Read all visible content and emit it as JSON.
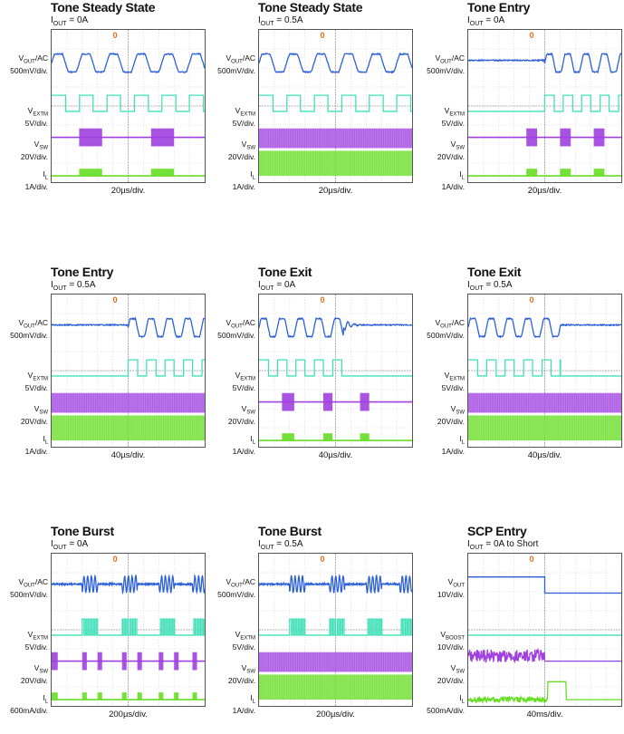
{
  "panels": [
    {
      "title": "Tone Steady State",
      "cond_sym": "OUT",
      "cond_val": " = 0A",
      "xdiv": "20µs/div.",
      "channels": [
        {
          "sym": "V",
          "sub": "OUT",
          "suffix": "/AC",
          "scale": "500mV/div.",
          "kind": "vout_tone",
          "start": 0.0,
          "end": 1.0,
          "period": 0.18
        },
        {
          "sym": "V",
          "sub": "EXTM",
          "suffix": "",
          "scale": "5V/div.",
          "kind": "square",
          "start": 0.0,
          "end": 1.0,
          "period": 0.18
        },
        {
          "sym": "V",
          "sub": "SW",
          "suffix": "",
          "scale": "20V/div.",
          "kind": "sw_burst",
          "bursts": [
            [
              0.18,
              0.33
            ],
            [
              0.65,
              0.8
            ]
          ]
        },
        {
          "sym": "I",
          "sub": "L",
          "suffix": "",
          "scale": "1A/div.",
          "kind": "il_burst",
          "bursts": [
            [
              0.18,
              0.33
            ],
            [
              0.65,
              0.8
            ]
          ]
        }
      ]
    },
    {
      "title": "Tone Steady State",
      "cond_sym": "OUT",
      "cond_val": " = 0.5A",
      "xdiv": "20µs/div.",
      "channels": [
        {
          "sym": "V",
          "sub": "OUT",
          "suffix": "/AC",
          "scale": "500mV/div.",
          "kind": "vout_tone",
          "start": 0.0,
          "end": 1.0,
          "period": 0.18
        },
        {
          "sym": "V",
          "sub": "EXTM",
          "suffix": "",
          "scale": "5V/div.",
          "kind": "square",
          "start": 0.0,
          "end": 1.0,
          "period": 0.18
        },
        {
          "sym": "V",
          "sub": "SW",
          "suffix": "",
          "scale": "20V/div.",
          "kind": "sw_full"
        },
        {
          "sym": "I",
          "sub": "L",
          "suffix": "",
          "scale": "1A/div.",
          "kind": "il_full"
        }
      ]
    },
    {
      "title": "Tone Entry",
      "cond_sym": "OUT",
      "cond_val": " = 0A",
      "xdiv": "20µs/div.",
      "channels": [
        {
          "sym": "V",
          "sub": "OUT",
          "suffix": "/AC",
          "scale": "500mV/div.",
          "kind": "vout_tone",
          "start": 0.5,
          "end": 1.0,
          "period": 0.12
        },
        {
          "sym": "V",
          "sub": "EXTM",
          "suffix": "",
          "scale": "5V/div.",
          "kind": "square",
          "start": 0.5,
          "end": 1.0,
          "period": 0.12
        },
        {
          "sym": "V",
          "sub": "SW",
          "suffix": "",
          "scale": "20V/div.",
          "kind": "sw_burst",
          "bursts": [
            [
              0.38,
              0.45
            ],
            [
              0.6,
              0.67
            ],
            [
              0.82,
              0.89
            ]
          ]
        },
        {
          "sym": "I",
          "sub": "L",
          "suffix": "",
          "scale": "1A/div.",
          "kind": "il_burst",
          "bursts": [
            [
              0.38,
              0.45
            ],
            [
              0.6,
              0.67
            ],
            [
              0.82,
              0.89
            ]
          ]
        }
      ]
    },
    {
      "title": "Tone Entry",
      "cond_sym": "OUT",
      "cond_val": " = 0.5A",
      "xdiv": "40µs/div.",
      "channels": [
        {
          "sym": "V",
          "sub": "OUT",
          "suffix": "/AC",
          "scale": "500mV/div.",
          "kind": "vout_tone",
          "start": 0.5,
          "end": 1.0,
          "period": 0.12
        },
        {
          "sym": "V",
          "sub": "EXTM",
          "suffix": "",
          "scale": "5V/div.",
          "kind": "square",
          "start": 0.5,
          "end": 1.0,
          "period": 0.12
        },
        {
          "sym": "V",
          "sub": "SW",
          "suffix": "",
          "scale": "20V/div.",
          "kind": "sw_full"
        },
        {
          "sym": "I",
          "sub": "L",
          "suffix": "",
          "scale": "1A/div.",
          "kind": "il_full"
        }
      ]
    },
    {
      "title": "Tone Exit",
      "cond_sym": "OUT",
      "cond_val": " = 0A",
      "xdiv": "40µs/div.",
      "channels": [
        {
          "sym": "V",
          "sub": "OUT",
          "suffix": "/AC",
          "scale": "500mV/div.",
          "kind": "vout_tone",
          "start": 0.0,
          "end": 0.55,
          "period": 0.12,
          "ring": true
        },
        {
          "sym": "V",
          "sub": "EXTM",
          "suffix": "",
          "scale": "5V/div.",
          "kind": "square",
          "start": 0.0,
          "end": 0.55,
          "period": 0.12
        },
        {
          "sym": "V",
          "sub": "SW",
          "suffix": "",
          "scale": "20V/div.",
          "kind": "sw_burst",
          "bursts": [
            [
              0.15,
              0.23
            ],
            [
              0.42,
              0.48
            ],
            [
              0.66,
              0.72
            ]
          ]
        },
        {
          "sym": "I",
          "sub": "L",
          "suffix": "",
          "scale": "1A/div.",
          "kind": "il_burst",
          "bursts": [
            [
              0.15,
              0.23
            ],
            [
              0.42,
              0.48
            ],
            [
              0.66,
              0.72
            ]
          ]
        }
      ]
    },
    {
      "title": "Tone Exit",
      "cond_sym": "OUT",
      "cond_val": " = 0.5A",
      "xdiv": "40µs/div.",
      "channels": [
        {
          "sym": "V",
          "sub": "OUT",
          "suffix": "/AC",
          "scale": "500mV/div.",
          "kind": "vout_tone",
          "start": 0.0,
          "end": 0.6,
          "period": 0.12
        },
        {
          "sym": "V",
          "sub": "EXTM",
          "suffix": "",
          "scale": "5V/div.",
          "kind": "square",
          "start": 0.0,
          "end": 0.6,
          "period": 0.12
        },
        {
          "sym": "V",
          "sub": "SW",
          "suffix": "",
          "scale": "20V/div.",
          "kind": "sw_full"
        },
        {
          "sym": "I",
          "sub": "L",
          "suffix": "",
          "scale": "1A/div.",
          "kind": "il_full"
        }
      ]
    },
    {
      "title": "Tone Burst",
      "cond_sym": "OUT",
      "cond_val": " = 0A",
      "xdiv": "200µs/div.",
      "channels": [
        {
          "sym": "V",
          "sub": "OUT",
          "suffix": "/AC",
          "scale": "500mV/div.",
          "kind": "vout_burst",
          "bursts": [
            [
              0.2,
              0.3
            ],
            [
              0.46,
              0.56
            ],
            [
              0.7,
              0.8
            ],
            [
              0.92,
              1.0
            ]
          ]
        },
        {
          "sym": "V",
          "sub": "EXTM",
          "suffix": "",
          "scale": "5V/div.",
          "kind": "sq_burst",
          "bursts": [
            [
              0.2,
              0.3
            ],
            [
              0.46,
              0.56
            ],
            [
              0.7,
              0.8
            ],
            [
              0.92,
              1.0
            ]
          ]
        },
        {
          "sym": "V",
          "sub": "SW",
          "suffix": "",
          "scale": "20V/div.",
          "kind": "sw_burst",
          "bursts": [
            [
              0.0,
              0.04
            ],
            [
              0.2,
              0.23
            ],
            [
              0.3,
              0.33
            ],
            [
              0.46,
              0.49
            ],
            [
              0.56,
              0.59
            ],
            [
              0.7,
              0.73
            ],
            [
              0.8,
              0.83
            ],
            [
              0.92,
              0.95
            ]
          ]
        },
        {
          "sym": "I",
          "sub": "L",
          "suffix": "",
          "scale": "600mA/div.",
          "kind": "il_burst",
          "bursts": [
            [
              0.0,
              0.04
            ],
            [
              0.2,
              0.23
            ],
            [
              0.3,
              0.33
            ],
            [
              0.46,
              0.49
            ],
            [
              0.56,
              0.59
            ],
            [
              0.7,
              0.73
            ],
            [
              0.8,
              0.83
            ],
            [
              0.92,
              0.95
            ]
          ]
        }
      ]
    },
    {
      "title": "Tone Burst",
      "cond_sym": "OUT",
      "cond_val": " = 0.5A",
      "xdiv": "200µs/div.",
      "channels": [
        {
          "sym": "V",
          "sub": "OUT",
          "suffix": "/AC",
          "scale": "500mV/div.",
          "kind": "vout_burst",
          "bursts": [
            [
              0.2,
              0.3
            ],
            [
              0.46,
              0.56
            ],
            [
              0.7,
              0.8
            ],
            [
              0.92,
              1.0
            ]
          ]
        },
        {
          "sym": "V",
          "sub": "EXTM",
          "suffix": "",
          "scale": "5V/div.",
          "kind": "sq_burst",
          "bursts": [
            [
              0.2,
              0.3
            ],
            [
              0.46,
              0.56
            ],
            [
              0.7,
              0.8
            ],
            [
              0.92,
              1.0
            ]
          ]
        },
        {
          "sym": "V",
          "sub": "SW",
          "suffix": "",
          "scale": "20V/div.",
          "kind": "sw_full"
        },
        {
          "sym": "I",
          "sub": "L",
          "suffix": "",
          "scale": "1A/div.",
          "kind": "il_full"
        }
      ]
    },
    {
      "title": "SCP Entry",
      "cond_sym": "OUT",
      "cond_val": " = 0A  to Short",
      "xdiv": "40ms/div.",
      "channels": [
        {
          "sym": "V",
          "sub": "OUT",
          "suffix": "",
          "scale": "10V/div.",
          "kind": "step_down",
          "at": 0.5
        },
        {
          "sym": "V",
          "sub": "BOOST",
          "suffix": "",
          "scale": "10V/div.",
          "kind": "flat"
        },
        {
          "sym": "V",
          "sub": "SW",
          "suffix": "",
          "scale": "20V/div.",
          "kind": "noisy_until",
          "at": 0.5
        },
        {
          "sym": "I",
          "sub": "L",
          "suffix": "",
          "scale": "500mA/div.",
          "kind": "pulse",
          "from": 0.52,
          "to": 0.64
        }
      ]
    }
  ],
  "colors": {
    "vout": "#2a5fd8",
    "extm": "#3fe0b8",
    "sw": "#a040e0",
    "il": "#66dd22",
    "grid": "#c8c8c8",
    "trigger": "#e86a1a"
  },
  "chart_data": [
    {
      "type": "line",
      "title": "Tone Steady State",
      "subtitle": "IOUT = 0A",
      "x_scale": "20µs/div.",
      "series": [
        {
          "name": "VOUT/AC",
          "scale": "500mV/div."
        },
        {
          "name": "VEXTM",
          "scale": "5V/div."
        },
        {
          "name": "VSW",
          "scale": "20V/div."
        },
        {
          "name": "IL",
          "scale": "1A/div."
        }
      ]
    },
    {
      "type": "line",
      "title": "Tone Steady State",
      "subtitle": "IOUT = 0.5A",
      "x_scale": "20µs/div.",
      "series": [
        {
          "name": "VOUT/AC",
          "scale": "500mV/div."
        },
        {
          "name": "VEXTM",
          "scale": "5V/div."
        },
        {
          "name": "VSW",
          "scale": "20V/div."
        },
        {
          "name": "IL",
          "scale": "1A/div."
        }
      ]
    },
    {
      "type": "line",
      "title": "Tone Entry",
      "subtitle": "IOUT = 0A",
      "x_scale": "20µs/div.",
      "series": [
        {
          "name": "VOUT/AC",
          "scale": "500mV/div."
        },
        {
          "name": "VEXTM",
          "scale": "5V/div."
        },
        {
          "name": "VSW",
          "scale": "20V/div."
        },
        {
          "name": "IL",
          "scale": "1A/div."
        }
      ]
    },
    {
      "type": "line",
      "title": "Tone Entry",
      "subtitle": "IOUT = 0.5A",
      "x_scale": "40µs/div.",
      "series": [
        {
          "name": "VOUT/AC",
          "scale": "500mV/div."
        },
        {
          "name": "VEXTM",
          "scale": "5V/div."
        },
        {
          "name": "VSW",
          "scale": "20V/div."
        },
        {
          "name": "IL",
          "scale": "1A/div."
        }
      ]
    },
    {
      "type": "line",
      "title": "Tone Exit",
      "subtitle": "IOUT = 0A",
      "x_scale": "40µs/div.",
      "series": [
        {
          "name": "VOUT/AC",
          "scale": "500mV/div."
        },
        {
          "name": "VEXTM",
          "scale": "5V/div."
        },
        {
          "name": "VSW",
          "scale": "20V/div."
        },
        {
          "name": "IL",
          "scale": "1A/div."
        }
      ]
    },
    {
      "type": "line",
      "title": "Tone Exit",
      "subtitle": "IOUT = 0.5A",
      "x_scale": "40µs/div.",
      "series": [
        {
          "name": "VOUT/AC",
          "scale": "500mV/div."
        },
        {
          "name": "VEXTM",
          "scale": "5V/div."
        },
        {
          "name": "VSW",
          "scale": "20V/div."
        },
        {
          "name": "IL",
          "scale": "1A/div."
        }
      ]
    },
    {
      "type": "line",
      "title": "Tone Burst",
      "subtitle": "IOUT = 0A",
      "x_scale": "200µs/div.",
      "series": [
        {
          "name": "VOUT/AC",
          "scale": "500mV/div."
        },
        {
          "name": "VEXTM",
          "scale": "5V/div."
        },
        {
          "name": "VSW",
          "scale": "20V/div."
        },
        {
          "name": "IL",
          "scale": "600mA/div."
        }
      ]
    },
    {
      "type": "line",
      "title": "Tone Burst",
      "subtitle": "IOUT = 0.5A",
      "x_scale": "200µs/div.",
      "series": [
        {
          "name": "VOUT/AC",
          "scale": "500mV/div."
        },
        {
          "name": "VEXTM",
          "scale": "5V/div."
        },
        {
          "name": "VSW",
          "scale": "20V/div."
        },
        {
          "name": "IL",
          "scale": "1A/div."
        }
      ]
    },
    {
      "type": "line",
      "title": "SCP Entry",
      "subtitle": "IOUT = 0A  to Short",
      "x_scale": "40ms/div.",
      "series": [
        {
          "name": "VOUT",
          "scale": "10V/div."
        },
        {
          "name": "VBOOST",
          "scale": "10V/div."
        },
        {
          "name": "VSW",
          "scale": "20V/div."
        },
        {
          "name": "IL",
          "scale": "500mA/div."
        }
      ]
    }
  ]
}
